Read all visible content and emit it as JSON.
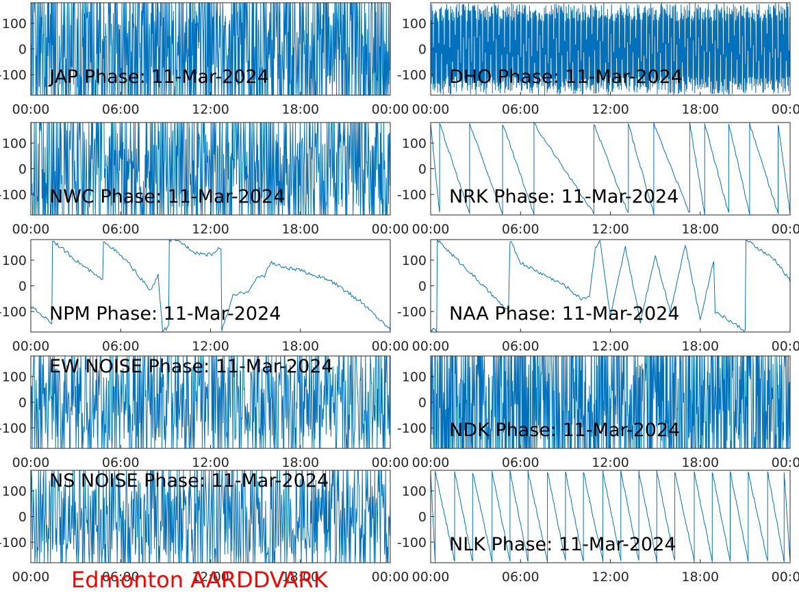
{
  "footer_label": "Edmonton AARDDVARK",
  "line_color": "#0072BD",
  "footer_color": "#FF0000",
  "chart_data": [
    {
      "type": "line",
      "panel": "left",
      "title": "JAP Phase: 11-Mar-2024",
      "title_position": "bottom-left",
      "behavior": "noise",
      "density": 0.9,
      "xticks": [
        "00:00",
        "06:00",
        "12:00",
        "18:00",
        "00:00"
      ],
      "yticks": [
        "100",
        "0",
        "-100"
      ],
      "xlim_hours": [
        0,
        24
      ],
      "ylim": [
        -180,
        180
      ]
    },
    {
      "type": "line",
      "panel": "right",
      "title": "DHO Phase: 11-Mar-2024",
      "title_position": "bottom-left",
      "behavior": "fast-wrap",
      "density": 0.8,
      "xticks": [
        "00:00",
        "06:00",
        "12:00",
        "18:00",
        "00:00"
      ],
      "yticks": [
        "100",
        "0",
        "-100"
      ],
      "xlim_hours": [
        0,
        24
      ],
      "ylim": [
        -180,
        180
      ]
    },
    {
      "type": "line",
      "panel": "left",
      "title": "NWC Phase: 11-Mar-2024",
      "title_position": "bottom-left",
      "behavior": "noise",
      "density": 0.7,
      "xticks": [
        "00:00",
        "06:00",
        "12:00",
        "18:00",
        "00:00"
      ],
      "yticks": [
        "100",
        "0",
        "-100"
      ],
      "xlim_hours": [
        0,
        24
      ],
      "ylim": [
        -180,
        180
      ]
    },
    {
      "type": "line",
      "panel": "right",
      "title": "NRK Phase: 11-Mar-2024",
      "title_position": "bottom-left",
      "behavior": "sawtooth",
      "wraps_hours": [
        0.6,
        2.6,
        4.8,
        6.9,
        10.9,
        13.2,
        14.9,
        17.3,
        18.3,
        19.9,
        21.3,
        23.2
      ],
      "xticks": [
        "00:00",
        "06:00",
        "12:00",
        "18:00",
        "00:00"
      ],
      "yticks": [
        "100",
        "0",
        "-100"
      ],
      "xlim_hours": [
        0,
        24
      ],
      "ylim": [
        -180,
        180
      ]
    },
    {
      "type": "line",
      "panel": "left",
      "title": "NPM Phase: 11-Mar-2024",
      "title_position": "bottom-left",
      "behavior": "drift",
      "points": [
        [
          0,
          -80
        ],
        [
          1.4,
          -145
        ],
        [
          1.45,
          178
        ],
        [
          3.0,
          100
        ],
        [
          4.8,
          20
        ],
        [
          4.85,
          178
        ],
        [
          6.5,
          90
        ],
        [
          8.0,
          -20
        ],
        [
          8.5,
          40
        ],
        [
          8.8,
          -175
        ],
        [
          9.2,
          -160
        ],
        [
          9.25,
          178
        ],
        [
          10.0,
          170
        ],
        [
          11.0,
          130
        ],
        [
          12.0,
          120
        ],
        [
          12.7,
          150
        ],
        [
          12.75,
          -175
        ],
        [
          13.5,
          -40
        ],
        [
          14.5,
          -20
        ],
        [
          15.2,
          35
        ],
        [
          15.6,
          40
        ],
        [
          16.0,
          90
        ],
        [
          17.0,
          70
        ],
        [
          18.0,
          60
        ],
        [
          20.0,
          20
        ],
        [
          22.0,
          -60
        ],
        [
          24.0,
          -170
        ]
      ],
      "xticks": [
        "00:00",
        "06:00",
        "12:00",
        "18:00",
        "00:00"
      ],
      "yticks": [
        "100",
        "0",
        "-100"
      ],
      "xlim_hours": [
        0,
        24
      ],
      "ylim": [
        -180,
        180
      ]
    },
    {
      "type": "line",
      "panel": "right",
      "title": "NAA Phase: 11-Mar-2024",
      "title_position": "bottom-left",
      "behavior": "drift",
      "points": [
        [
          0,
          -170
        ],
        [
          0.4,
          -175
        ],
        [
          0.45,
          178
        ],
        [
          2.5,
          60
        ],
        [
          4.5,
          -60
        ],
        [
          5.2,
          -100
        ],
        [
          5.3,
          178
        ],
        [
          6.0,
          90
        ],
        [
          7.0,
          60
        ],
        [
          9.0,
          0
        ],
        [
          10.0,
          -50
        ],
        [
          10.6,
          -40
        ],
        [
          11.0,
          150
        ],
        [
          11.3,
          178
        ],
        [
          12.0,
          -120
        ],
        [
          13.0,
          150
        ],
        [
          14.0,
          -140
        ],
        [
          15.0,
          120
        ],
        [
          16.0,
          -100
        ],
        [
          17.0,
          160
        ],
        [
          18.0,
          -130
        ],
        [
          18.9,
          100
        ],
        [
          19.0,
          -100
        ],
        [
          21.0,
          -175
        ],
        [
          21.05,
          178
        ],
        [
          23.0,
          100
        ],
        [
          24.0,
          20
        ]
      ],
      "xticks": [
        "00:00",
        "06:00",
        "12:00",
        "18:00",
        "00:00"
      ],
      "yticks": [
        "100",
        "0",
        "-100"
      ],
      "xlim_hours": [
        0,
        24
      ],
      "ylim": [
        -180,
        180
      ]
    },
    {
      "type": "line",
      "panel": "left",
      "title": "EW NOISE Phase: 11-Mar-2024",
      "title_position": "top-left",
      "behavior": "noise",
      "density": 0.6,
      "xticks": [
        "00:00",
        "06:00",
        "12:00",
        "18:00",
        "00:00"
      ],
      "yticks": [
        "100",
        "0",
        "-100"
      ],
      "xlim_hours": [
        0,
        24
      ],
      "ylim": [
        -180,
        180
      ]
    },
    {
      "type": "line",
      "panel": "right",
      "title": "NDK Phase: 11-Mar-2024",
      "title_position": "bottom-left",
      "behavior": "noise",
      "density": 0.95,
      "xticks": [
        "00:00",
        "06:00",
        "12:00",
        "18:00",
        "00:00"
      ],
      "yticks": [
        "100",
        "0",
        "-100"
      ],
      "xlim_hours": [
        0,
        24
      ],
      "ylim": [
        -180,
        180
      ]
    },
    {
      "type": "line",
      "panel": "left",
      "title": "NS NOISE Phase: 11-Mar-2024",
      "title_position": "top-left",
      "behavior": "noise",
      "density": 0.55,
      "xticks": [
        "00:00",
        "06:00",
        "12:00",
        "18:00",
        "00:00"
      ],
      "yticks": [
        "100",
        "0",
        "-100"
      ],
      "xlim_hours": [
        0,
        24
      ],
      "ylim": [
        -180,
        180
      ]
    },
    {
      "type": "line",
      "panel": "right",
      "title": "NLK Phase: 11-Mar-2024",
      "title_position": "bottom-left",
      "behavior": "sawtooth",
      "wraps_hours": [
        0.3,
        1.6,
        2.8,
        4.1,
        5.3,
        6.5,
        7.8,
        9.0,
        10.2,
        11.5,
        12.7,
        13.9,
        15.1,
        16.3,
        17.6,
        18.8,
        20.0,
        21.2,
        22.5,
        23.6
      ],
      "xticks": [
        "00:00",
        "06:00",
        "12:00",
        "18:00",
        "00:00"
      ],
      "yticks": [
        "100",
        "0",
        "-100"
      ],
      "xlim_hours": [
        0,
        24
      ],
      "ylim": [
        -180,
        180
      ]
    }
  ]
}
